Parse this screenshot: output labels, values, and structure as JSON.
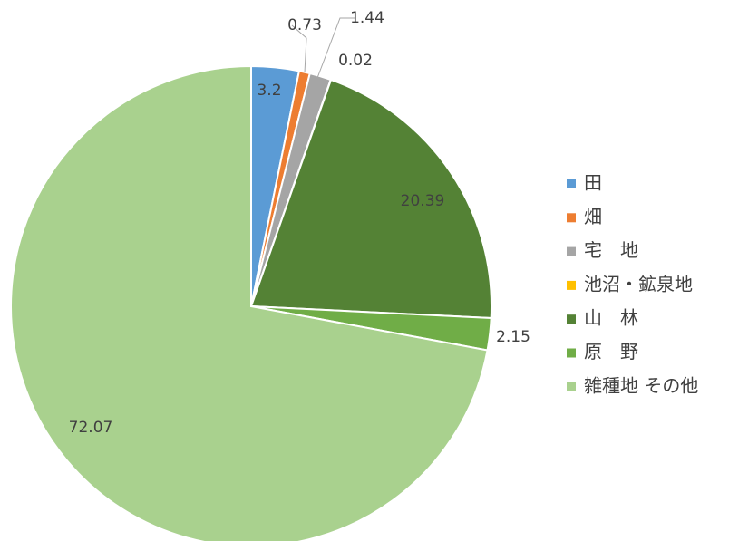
{
  "chart_data": {
    "type": "pie",
    "categories": [
      "田",
      "畑",
      "宅　地",
      "池沼・鉱泉地",
      "山　林",
      "原　野",
      "雑種地 その他"
    ],
    "values": [
      3.2,
      0.73,
      1.44,
      0.02,
      20.39,
      2.15,
      72.07
    ],
    "colors": [
      "#5b9bd5",
      "#ed7d31",
      "#a5a5a5",
      "#ffc000",
      "#548235",
      "#70ad47",
      "#a9d18e"
    ],
    "legend": "right"
  }
}
